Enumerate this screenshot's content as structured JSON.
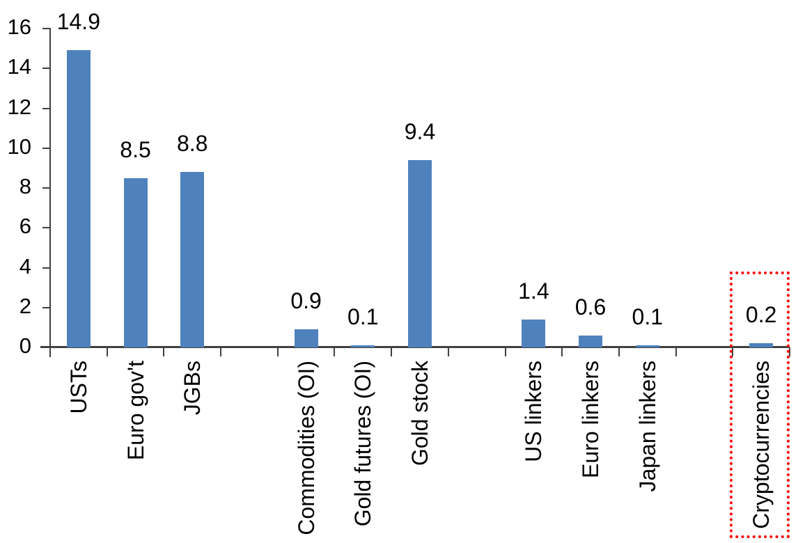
{
  "chart_data": {
    "type": "bar",
    "title": "",
    "xlabel": "",
    "ylabel": "",
    "categories": [
      "USTs",
      "Euro gov't",
      "JGBs",
      "",
      "Commodities (OI)",
      "Gold futures (OI)",
      "Gold stock",
      "",
      "US linkers",
      "Euro linkers",
      "Japan linkers",
      "",
      "Cryptocurrencies"
    ],
    "values": [
      14.9,
      8.5,
      8.8,
      null,
      0.9,
      0.1,
      9.4,
      null,
      1.4,
      0.6,
      0.1,
      null,
      0.2
    ],
    "data_labels": [
      "14.9",
      "8.5",
      "8.8",
      null,
      "0.9",
      "0.1",
      "9.4",
      null,
      "1.4",
      "0.6",
      "0.1",
      null,
      "0.2"
    ],
    "ylim": [
      0,
      16
    ],
    "yticks": [
      "0",
      "2",
      "4",
      "6",
      "8",
      "10",
      "12",
      "14",
      "16"
    ],
    "ytick_step": 2,
    "grid": "off",
    "legend": "none",
    "bar_color": "#4F81BD",
    "axis_color": "#404040",
    "text_color": "#000000",
    "highlight": {
      "category": "Cryptocurrencies",
      "index": 12,
      "box_color": "#FF0000",
      "box_style": "dotted"
    }
  }
}
